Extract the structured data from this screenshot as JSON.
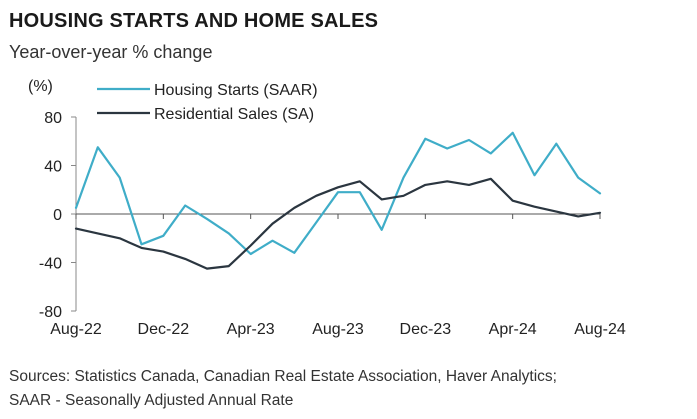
{
  "chart_data": {
    "type": "line",
    "title": "HOUSING STARTS AND HOME SALES",
    "subtitle": "Year-over-year % change",
    "ylabel": "(%)",
    "ylim": [
      -80,
      80
    ],
    "yticks": [
      -80,
      -40,
      0,
      40,
      80
    ],
    "xtick_labels": [
      "Aug-22",
      "Dec-22",
      "Apr-23",
      "Aug-23",
      "Dec-23",
      "Apr-24",
      "Aug-24"
    ],
    "x": [
      "Aug-22",
      "Sep-22",
      "Oct-22",
      "Nov-22",
      "Dec-22",
      "Jan-23",
      "Feb-23",
      "Mar-23",
      "Apr-23",
      "May-23",
      "Jun-23",
      "Jul-23",
      "Aug-23",
      "Sep-23",
      "Oct-23",
      "Nov-23",
      "Dec-23",
      "Jan-24",
      "Feb-24",
      "Mar-24",
      "Apr-24",
      "May-24",
      "Jun-24",
      "Jul-24",
      "Aug-24"
    ],
    "grid": false,
    "legend_position": "top-left",
    "series": [
      {
        "name": "Housing Starts (SAAR)",
        "color": "#3fadc8",
        "values": [
          5,
          55,
          30,
          -25,
          -18,
          7,
          -4,
          -16,
          -33,
          -22,
          -32,
          -7,
          18,
          18,
          -13,
          30,
          62,
          54,
          61,
          50,
          67,
          32,
          58,
          30,
          17
        ]
      },
      {
        "name": "Residential Sales (SA)",
        "color": "#2b3640",
        "values": [
          -12,
          -16,
          -20,
          -28,
          -31,
          -37,
          -45,
          -43,
          -26,
          -8,
          5,
          15,
          22,
          27,
          12,
          15,
          24,
          27,
          24,
          29,
          11,
          6,
          2,
          -2,
          1
        ]
      }
    ]
  },
  "source_lines": [
    "Sources: Statistics Canada, Canadian Real Estate Association, Haver Analytics;",
    "SAAR - Seasonally Adjusted Annual Rate"
  ]
}
